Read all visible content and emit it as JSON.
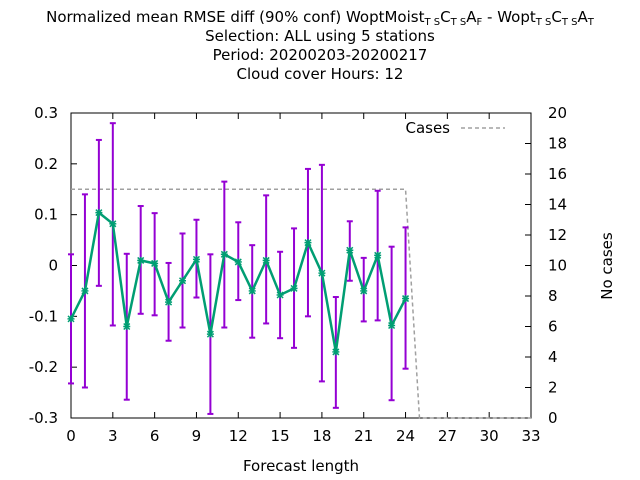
{
  "chart_data": {
    "type": "line",
    "title_lines": [
      {
        "parts": [
          {
            "text": "Normalized mean RMSE diff (90% conf) WoptMoist"
          },
          {
            "text": "T S",
            "sub": true
          },
          {
            "text": "C"
          },
          {
            "text": "T S",
            "sub": true
          },
          {
            "text": "A"
          },
          {
            "text": "F",
            "sub": true
          },
          {
            "text": " - Wopt"
          },
          {
            "text": "T S",
            "sub": true
          },
          {
            "text": "C"
          },
          {
            "text": "T S",
            "sub": true
          },
          {
            "text": "A"
          },
          {
            "text": "T",
            "sub": true
          }
        ]
      },
      {
        "parts": [
          {
            "text": "Selection: ALL using     5 stations"
          }
        ]
      },
      {
        "parts": [
          {
            "text": "Period: 20200203-20200217"
          }
        ]
      },
      {
        "parts": [
          {
            "text": "Cloud cover   Hours:  12"
          }
        ]
      }
    ],
    "xlabel": "Forecast length",
    "ylabel": "",
    "y2label": "No cases",
    "xlim": [
      0,
      33
    ],
    "ylim": [
      -0.3,
      0.3
    ],
    "y2lim": [
      0,
      20
    ],
    "xticks": [
      0,
      3,
      6,
      9,
      12,
      15,
      18,
      21,
      24,
      27,
      30,
      33
    ],
    "yticks": [
      -0.3,
      -0.2,
      -0.1,
      0,
      0.1,
      0.2,
      0.3
    ],
    "ytick_labels": [
      "-0.3",
      "-0.2",
      "-0.1",
      "0",
      "0.1",
      "0.2",
      "0.3"
    ],
    "y2ticks": [
      0,
      2,
      4,
      6,
      8,
      10,
      12,
      14,
      16,
      18,
      20
    ],
    "legend": {
      "label": "Cases",
      "position": "top-right"
    },
    "series": [
      {
        "kind": "line-errorbars",
        "color": "#009e73",
        "errorbar_color": "#9400d3",
        "x": [
          0,
          1,
          2,
          3,
          4,
          5,
          6,
          7,
          8,
          9,
          10,
          11,
          12,
          13,
          14,
          15,
          16,
          17,
          18,
          19,
          20,
          21,
          22,
          23,
          24
        ],
        "y": [
          -0.105,
          -0.05,
          0.104,
          0.082,
          -0.12,
          0.01,
          0.004,
          -0.072,
          -0.03,
          0.012,
          -0.135,
          0.022,
          0.007,
          -0.05,
          0.01,
          -0.058,
          -0.045,
          0.045,
          -0.015,
          -0.17,
          0.03,
          -0.05,
          0.02,
          -0.118,
          -0.065
        ],
        "ylow": [
          -0.232,
          -0.24,
          -0.04,
          -0.118,
          -0.264,
          -0.095,
          -0.098,
          -0.148,
          -0.122,
          -0.063,
          -0.292,
          -0.122,
          -0.068,
          -0.142,
          -0.114,
          -0.143,
          -0.162,
          -0.1,
          -0.228,
          -0.28,
          -0.03,
          -0.11,
          -0.108,
          -0.265,
          -0.203
        ],
        "yhigh": [
          0.022,
          0.14,
          0.247,
          0.28,
          0.023,
          0.117,
          0.103,
          0.005,
          0.063,
          0.09,
          0.022,
          0.165,
          0.085,
          0.04,
          0.138,
          0.027,
          0.073,
          0.19,
          0.198,
          -0.062,
          0.087,
          0.015,
          0.147,
          0.037,
          0.075
        ]
      },
      {
        "name": "Cases",
        "kind": "dashed",
        "axis": "y2",
        "color": "#a0a0a0",
        "x": [
          0,
          1,
          2,
          3,
          4,
          5,
          6,
          7,
          8,
          9,
          10,
          11,
          12,
          13,
          14,
          15,
          16,
          17,
          18,
          19,
          20,
          21,
          22,
          23,
          24,
          25,
          26,
          27,
          28,
          29,
          30,
          31,
          32,
          33
        ],
        "y": [
          15,
          15,
          15,
          15,
          15,
          15,
          15,
          15,
          15,
          15,
          15,
          15,
          15,
          15,
          15,
          15,
          15,
          15,
          15,
          15,
          15,
          15,
          15,
          15,
          15,
          0,
          0,
          0,
          0,
          0,
          0,
          0,
          0,
          0
        ]
      }
    ]
  }
}
